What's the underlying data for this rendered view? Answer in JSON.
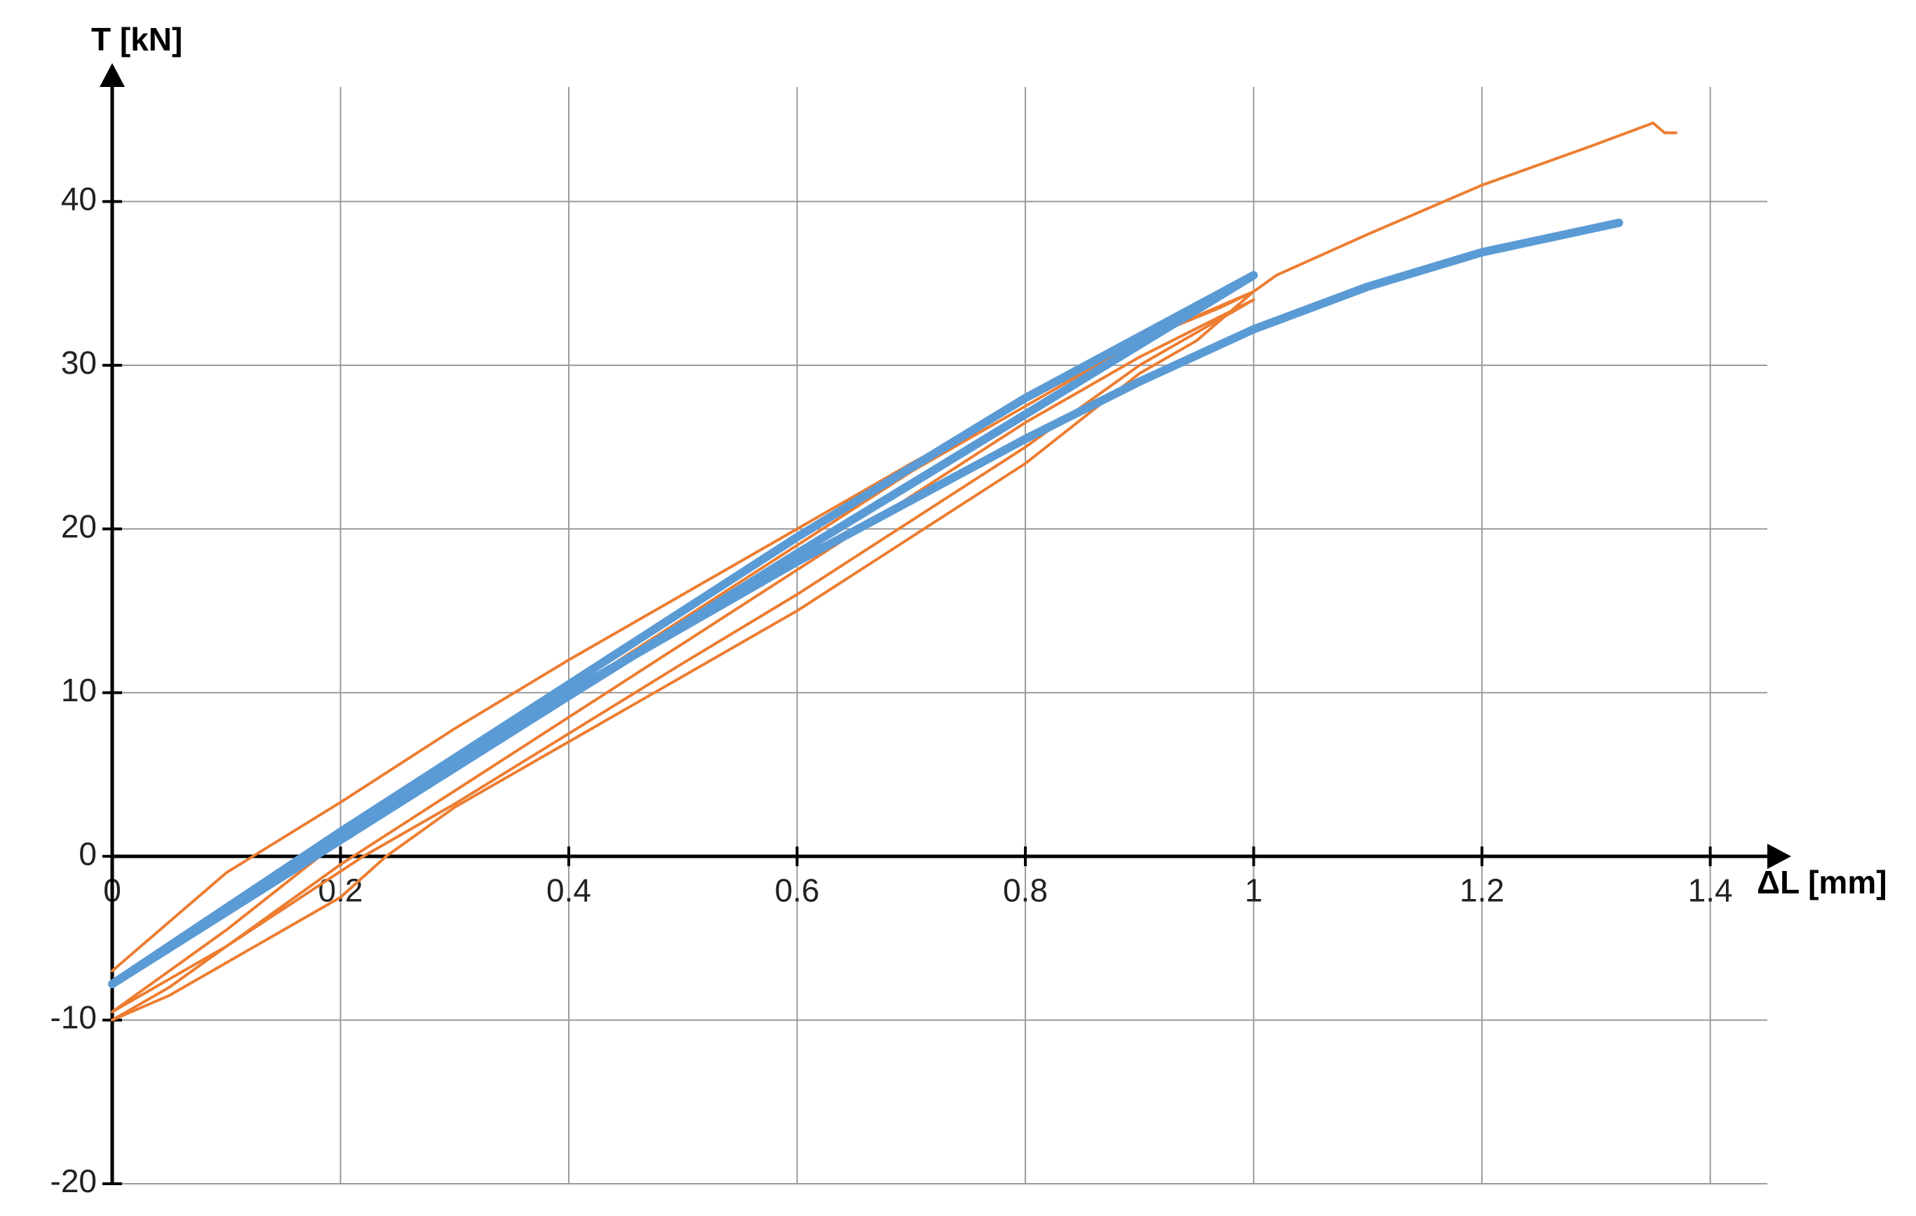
{
  "chart_data": {
    "type": "line",
    "x_label": "ΔL [mm]",
    "y_label": "T [kN]",
    "xlim": [
      0,
      1.45
    ],
    "ylim": [
      -20,
      47
    ],
    "xticks": [
      0,
      0.2,
      0.4,
      0.6,
      0.8,
      1,
      1.2,
      1.4
    ],
    "yticks": [
      -20,
      -10,
      0,
      10,
      20,
      30,
      40
    ],
    "grid": true,
    "series": [
      {
        "color": "#ed7d31",
        "width": 4,
        "x": [
          0,
          0.05,
          0.1,
          0.2,
          0.3,
          0.4,
          0.5,
          0.6,
          0.7,
          0.8,
          0.9,
          0.97,
          1.0,
          0.95,
          0.9,
          0.8,
          0.7,
          0.6,
          0.5,
          0.4,
          0.3,
          0.24,
          0.2,
          0.1,
          0.05,
          0,
          0.05,
          0.1,
          0.2,
          0.3,
          0.4,
          0.5,
          0.6,
          0.7,
          0.8,
          0.9,
          1.0,
          0.9,
          0.8,
          0.7,
          0.6,
          0.5,
          0.4,
          0.3,
          0.22,
          0.1,
          0,
          0.1,
          0.2,
          0.3,
          0.4,
          0.5,
          0.6,
          0.7,
          0.8,
          0.9,
          1.0,
          1.02,
          1.1,
          1.2,
          1.3,
          1.35,
          1.36,
          1.37
        ],
        "values": [
          -7,
          -4,
          -1,
          3.3,
          7.8,
          12,
          16,
          20,
          24,
          27.8,
          31.5,
          33.5,
          34.5,
          31.5,
          29.5,
          24,
          19.5,
          15,
          11,
          7,
          3,
          0,
          -2.5,
          -6.5,
          -8.5,
          -10,
          -8,
          -5.5,
          -0.5,
          4,
          8.5,
          13,
          17.5,
          22,
          26.5,
          30.5,
          34,
          30,
          25,
          20.5,
          16,
          11.8,
          7.5,
          3.2,
          0,
          -5.5,
          -9.5,
          -4.5,
          1,
          5.5,
          10,
          14.5,
          19,
          23.5,
          27.5,
          31.5,
          34.5,
          35.5,
          38,
          41,
          43.5,
          44.8,
          44.2,
          44.2
        ]
      },
      {
        "color": "#5b9bd5",
        "width": 12,
        "x": [
          0,
          0.2,
          0.4,
          0.6,
          0.8,
          1.0,
          0.8,
          0.6,
          0.4,
          0.2,
          0,
          0.2,
          0.4,
          0.6,
          0.8,
          0.9,
          1.0,
          1.1,
          1.2,
          1.32
        ],
        "values": [
          -7.8,
          1.5,
          10.5,
          19.5,
          28,
          35.5,
          27,
          18.5,
          9.8,
          1,
          -7.8,
          1.2,
          10,
          18,
          25.5,
          29,
          32.2,
          34.8,
          36.9,
          38.7
        ]
      }
    ]
  }
}
